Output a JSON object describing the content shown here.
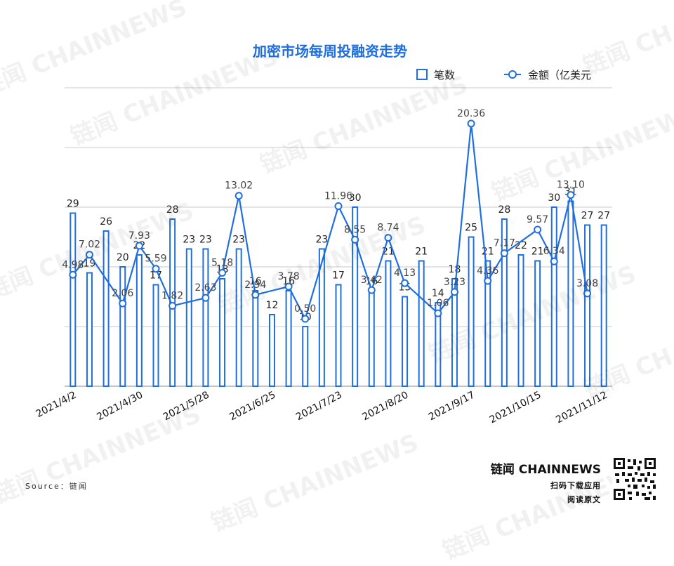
{
  "watermark": {
    "text": "链闻 CHAINNEWS"
  },
  "footer": {
    "source": "Source：链闻",
    "brand": "链闻 CHAINNEWS",
    "cta_line1": "扫码下载应用",
    "cta_line2": "阅读原文"
  },
  "colors": {
    "accent": "#1f6fe0",
    "grid": "#c8c8c8",
    "label": "#333333"
  },
  "chart_data": {
    "type": "bar",
    "title": "加密市场每周投融资走势",
    "legend": {
      "placement": "top-right"
    },
    "x": [
      "2021/4/2",
      "2021/4/9",
      "2021/4/16",
      "2021/4/23",
      "2021/4/30",
      "2021/5/7",
      "2021/5/14",
      "2021/5/21",
      "2021/5/28",
      "2021/6/4",
      "2021/6/11",
      "2021/6/18",
      "2021/6/25",
      "2021/7/2",
      "2021/7/9",
      "2021/7/16",
      "2021/7/23",
      "2021/7/30",
      "2021/8/6",
      "2021/8/13",
      "2021/8/20",
      "2021/8/27",
      "2021/9/3",
      "2021/9/10",
      "2021/9/17",
      "2021/9/24",
      "2021/10/1",
      "2021/10/8",
      "2021/10/15",
      "2021/10/22",
      "2021/10/29",
      "2021/11/5",
      "2021/11/12"
    ],
    "xtick_labels": [
      "2021/4/2",
      "2021/4/30",
      "2021/5/28",
      "2021/6/25",
      "2021/7/23",
      "2021/8/20",
      "2021/9/17",
      "2021/10/15",
      "2021/11/12"
    ],
    "series": [
      {
        "name": "笔数",
        "type": "bar",
        "values": [
          29,
          19,
          26,
          20,
          22,
          17,
          28,
          23,
          23,
          18,
          23,
          16,
          12,
          16,
          10,
          23,
          17,
          30,
          16,
          21,
          15,
          21,
          14,
          18,
          25,
          21,
          28,
          22,
          21,
          30,
          31,
          27,
          27
        ]
      },
      {
        "name": "金额（亿美元",
        "type": "line",
        "values": [
          4.98,
          7.02,
          null,
          2.06,
          7.93,
          5.59,
          1.82,
          null,
          2.63,
          5.18,
          13.02,
          2.94,
          null,
          3.78,
          0.5,
          null,
          11.96,
          8.55,
          3.42,
          8.74,
          4.13,
          null,
          1.06,
          3.23,
          20.36,
          4.36,
          7.17,
          null,
          9.57,
          6.34,
          13.1,
          3.08,
          null
        ],
        "labels": [
          "4.98",
          "7.02",
          "",
          "2.06",
          "7.93",
          "5.59",
          "1.82",
          "",
          "2.63",
          "5.18",
          "13.02",
          "2.94",
          "",
          "3.78",
          "0.50",
          "",
          "11.96",
          "8.55",
          "3.42",
          "8.74",
          "4.13",
          "",
          "1.06",
          "3.23",
          "20.36",
          "4.36",
          "7.17",
          "",
          "9.57",
          "6.34",
          "13.10",
          "3.08",
          ""
        ]
      }
    ],
    "grid": true
  }
}
